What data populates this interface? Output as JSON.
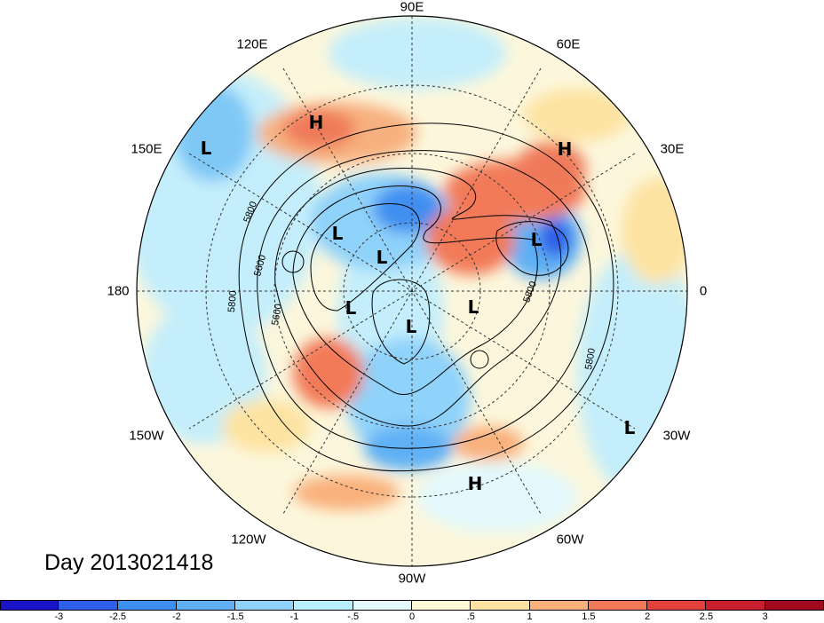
{
  "title": "Day 2013021418",
  "longitude_labels": {
    "lon_90e": "90E",
    "lon_120e": "120E",
    "lon_60e": "60E",
    "lon_150e": "150E",
    "lon_30e": "30E",
    "lon_180": "180",
    "lon_0": "0",
    "lon_150w": "150W",
    "lon_30w": "30W",
    "lon_120w": "120W",
    "lon_60w": "60W",
    "lon_90w": "90W"
  },
  "pressure_centers": [
    {
      "type": "H"
    },
    {
      "type": "H"
    },
    {
      "type": "H"
    },
    {
      "type": "L"
    },
    {
      "type": "L"
    },
    {
      "type": "L"
    },
    {
      "type": "L"
    },
    {
      "type": "L"
    },
    {
      "type": "L"
    },
    {
      "type": "L"
    },
    {
      "type": "L"
    }
  ],
  "contour_labels": [
    "5800",
    "5600",
    "5800",
    "5600",
    "5800",
    "5800"
  ],
  "colorbar": {
    "colors": [
      "#1a14c8",
      "#2e5fe8",
      "#3f8ff0",
      "#5fb0f5",
      "#8fd2fa",
      "#b9eefc",
      "#e3f9fd",
      "#fefad8",
      "#fde3a2",
      "#f9b07b",
      "#f27a59",
      "#e5413c",
      "#c81e2e",
      "#a00a1e"
    ],
    "ticks": [
      "-3",
      "-2.5",
      "-2",
      "-1.5",
      "-1",
      "-.5",
      "0",
      ".5",
      "1",
      "1.5",
      "2",
      "2.5",
      "3"
    ]
  }
}
